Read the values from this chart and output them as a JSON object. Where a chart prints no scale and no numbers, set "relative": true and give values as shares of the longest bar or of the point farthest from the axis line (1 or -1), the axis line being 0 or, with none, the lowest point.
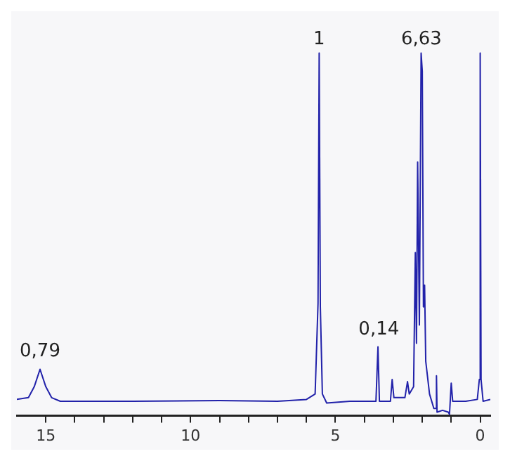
{
  "chart_data": {
    "type": "line",
    "relative": true,
    "color": "#2222aa",
    "marker": "none",
    "line_style": "solid",
    "grid": false,
    "legend": false,
    "x": [
      16.0,
      15.6,
      15.4,
      15.2,
      15.0,
      14.8,
      14.5,
      12,
      9,
      7,
      6.0,
      5.7,
      5.6,
      5.56,
      5.52,
      5.45,
      5.3,
      4.5,
      3.6,
      3.53,
      3.48,
      3.1,
      3.04,
      2.98,
      2.6,
      2.51,
      2.45,
      2.3,
      2.24,
      2.2,
      2.16,
      2.1,
      2.04,
      2.0,
      1.96,
      1.92,
      1.88,
      1.84,
      1.75,
      1.6,
      1.53,
      1.51,
      1.49,
      1.3,
      1.1,
      1.06,
      1.0,
      0.95,
      0.5,
      0.1,
      0.03,
      0.0,
      -0.03,
      -0.1,
      -0.35
    ],
    "values": [
      0.045,
      0.05,
      0.08,
      0.128,
      0.08,
      0.05,
      0.04,
      0.04,
      0.042,
      0.04,
      0.045,
      0.06,
      0.31,
      1,
      0.3,
      0.06,
      0.035,
      0.04,
      0.04,
      0.19,
      0.04,
      0.04,
      0.1,
      0.05,
      0.05,
      0.094,
      0.06,
      0.08,
      0.45,
      0.2,
      0.7,
      0.25,
      1,
      0.95,
      0.3,
      0.36,
      0.15,
      0.15,
      0.06,
      0.02,
      0.02,
      0.11,
      0.01,
      0.015,
      0.01,
      0.004,
      0.09,
      0.04,
      0.04,
      0.045,
      0.1,
      1,
      0.1,
      0.04,
      0.045
    ],
    "xlim": [
      16,
      -0.35
    ],
    "xticks": [
      15,
      {
        "value": 14,
        "label": null
      },
      {
        "value": 13,
        "label": null
      },
      {
        "value": 12,
        "label": null
      },
      {
        "value": 11,
        "label": null
      },
      10,
      {
        "value": 9,
        "label": null
      },
      {
        "value": 8,
        "label": null
      },
      {
        "value": 7,
        "label": null
      },
      {
        "value": 6,
        "label": null
      },
      5,
      {
        "value": 4,
        "label": null
      },
      {
        "value": 3,
        "label": null
      },
      {
        "value": 2,
        "label": null
      },
      {
        "value": 1,
        "label": null
      },
      0
    ],
    "annotations": [
      {
        "text": "0,79",
        "x": 15.2,
        "y": 0.14
      },
      {
        "text": "1",
        "x": 5.56,
        "y": 1
      },
      {
        "text": "0,14",
        "x": 3.5,
        "y": 0.2
      },
      {
        "text": "6,63",
        "x": 2.03,
        "y": 1.0
      }
    ]
  }
}
